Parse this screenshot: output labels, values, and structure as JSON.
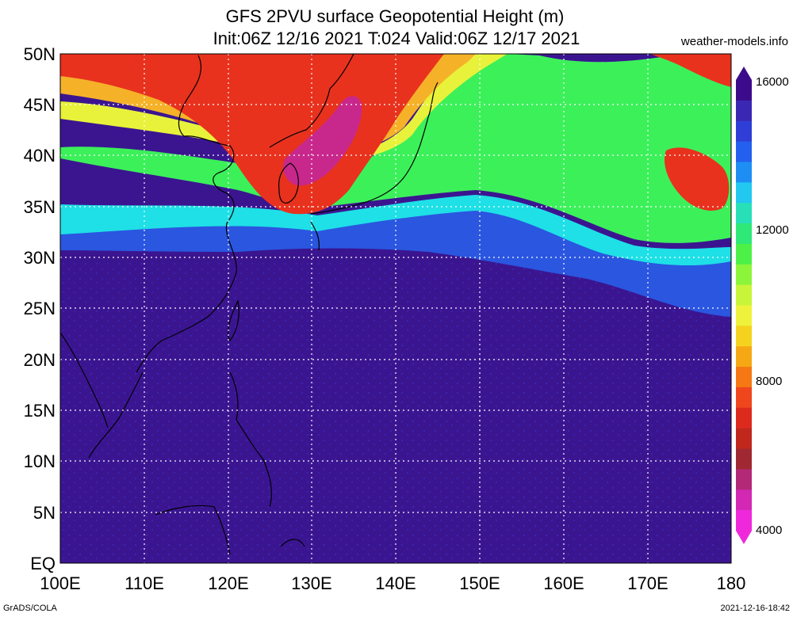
{
  "header": {
    "title_line1": "GFS 2PVU surface Geopotential Height (m)",
    "title_line2": "Init:06Z 12/16 2021 T:024 Valid:06Z 12/17 2021",
    "source": "weather-models.info"
  },
  "axes": {
    "lat_labels": [
      "50N",
      "45N",
      "40N",
      "35N",
      "30N",
      "25N",
      "20N",
      "15N",
      "10N",
      "5N",
      "EQ"
    ],
    "lon_labels": [
      "100E",
      "110E",
      "120E",
      "130E",
      "140E",
      "150E",
      "160E",
      "170E",
      "180"
    ]
  },
  "colorbar": {
    "labels": [
      "16000",
      "12000",
      "8000",
      "4000"
    ],
    "colors": [
      "#3b0b8c",
      "#3a28b4",
      "#2f3ed6",
      "#2460f0",
      "#1e8ef5",
      "#22c8f0",
      "#28e0b8",
      "#2ee878",
      "#4df046",
      "#8cf53a",
      "#c8f53a",
      "#eef23a",
      "#f5d21e",
      "#f5a814",
      "#f57814",
      "#f0461e",
      "#dc2a1e",
      "#c0281e",
      "#a02832",
      "#b42878",
      "#d228b4",
      "#f028dc"
    ]
  },
  "map": {
    "field_colors": {
      "tropical": "#3b1590",
      "transition": "#2a56e0",
      "cyan": "#1ee0e6",
      "green": "#3cf05a",
      "yellow": "#e8f23a",
      "orange": "#f5b228",
      "red": "#e8321e",
      "magenta": "#c8288c",
      "coast": "#000000"
    }
  },
  "footer": {
    "credit": "GrADS/COLA",
    "timestamp": "2021-12-16-18:42"
  }
}
